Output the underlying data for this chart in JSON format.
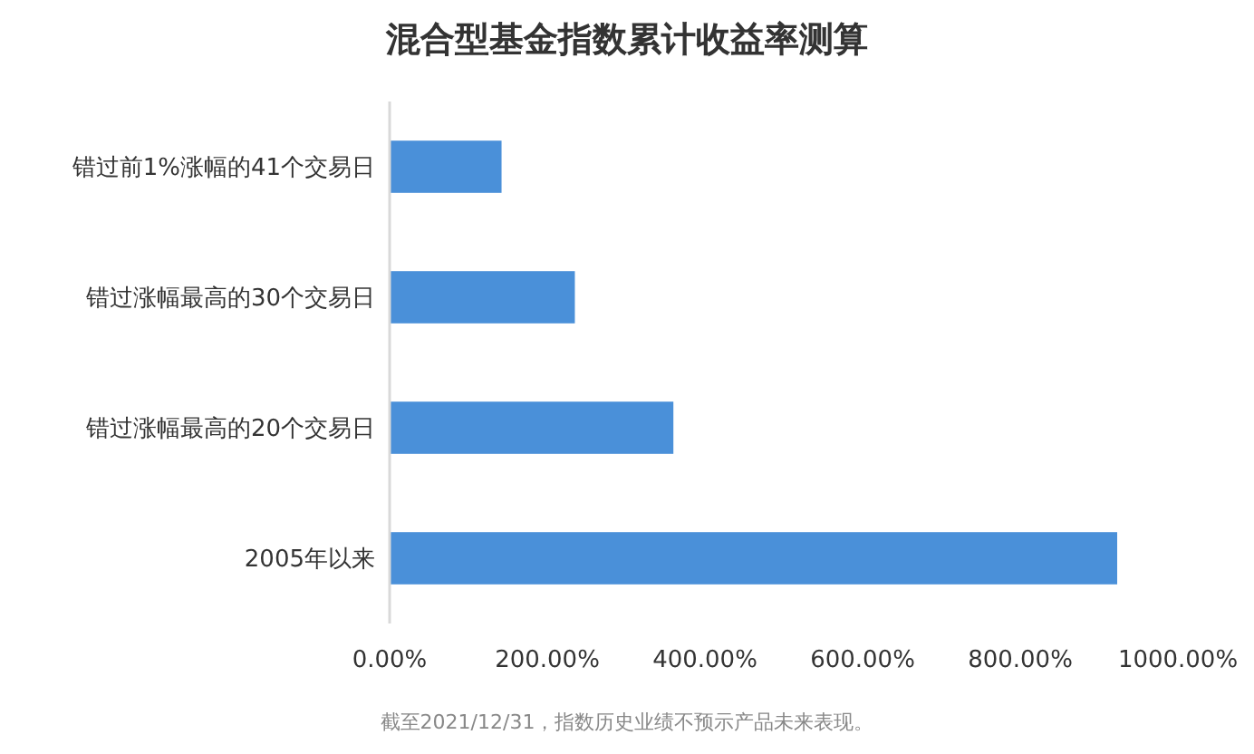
{
  "chart_data": {
    "type": "bar",
    "orientation": "horizontal",
    "title": "混合型基金指数累计收益率测算",
    "categories": [
      "错过前1%涨幅的41个交易日",
      "错过涨幅最高的30个交易日",
      "错过涨幅最高的20个交易日",
      "2005年以来"
    ],
    "values": [
      142,
      235,
      360,
      923
    ],
    "color": "#4a90d9",
    "xlim": [
      0,
      1000
    ],
    "xticks": [
      {
        "value": 0,
        "label": "0.00%"
      },
      {
        "value": 200,
        "label": "200.00%"
      },
      {
        "value": 400,
        "label": "400.00%"
      },
      {
        "value": 600,
        "label": "600.00%"
      },
      {
        "value": 800,
        "label": "800.00%"
      },
      {
        "value": 1000,
        "label": "1000.00%"
      }
    ],
    "grid": false,
    "annotations": [
      "截至2021/12/31，指数历史业绩不预示产品未来表现。"
    ]
  }
}
